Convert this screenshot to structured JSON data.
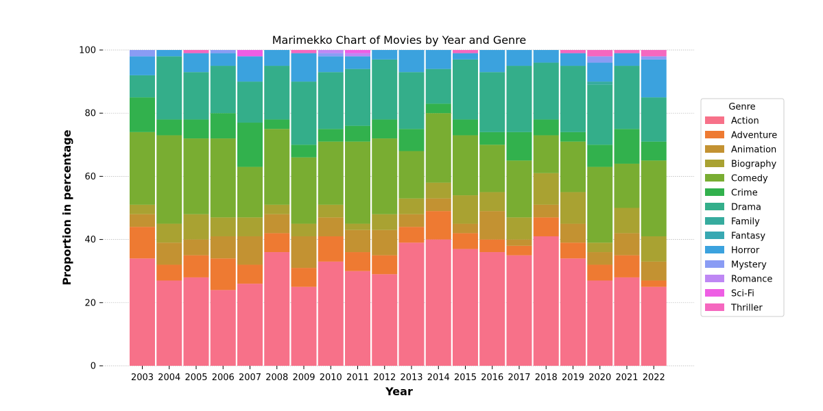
{
  "chart_data": {
    "type": "bar",
    "stacked": true,
    "title": "Marimekko Chart of Movies by Year and Genre",
    "xlabel": "Year",
    "ylabel": "Proportion in percentage",
    "ylim": [
      0,
      100
    ],
    "yticks": [
      "0",
      "20",
      "40",
      "60",
      "80",
      "100"
    ],
    "grid": "horizontal dotted",
    "legend": {
      "title": "Genre",
      "placement": "right"
    },
    "categories": [
      "2003",
      "2004",
      "2005",
      "2006",
      "2007",
      "2008",
      "2009",
      "2010",
      "2011",
      "2012",
      "2013",
      "2014",
      "2015",
      "2016",
      "2017",
      "2018",
      "2019",
      "2020",
      "2021",
      "2022"
    ],
    "series": [
      {
        "name": "Action",
        "color": "#f77189",
        "values": [
          34,
          27,
          28,
          24,
          26,
          36,
          25,
          33,
          30,
          29,
          39,
          40,
          37,
          36,
          35,
          41,
          34,
          27,
          28,
          25
        ]
      },
      {
        "name": "Adventure",
        "color": "#ee7a32",
        "values": [
          10,
          5,
          7,
          10,
          6,
          6,
          6,
          8,
          6,
          6,
          5,
          9,
          5,
          4,
          3,
          6,
          5,
          5,
          7,
          2
        ]
      },
      {
        "name": "Animation",
        "color": "#c39232",
        "values": [
          4,
          7,
          5,
          7,
          9,
          6,
          10,
          6,
          7,
          8,
          4,
          4,
          3,
          9,
          2,
          4,
          6,
          4,
          7,
          6
        ]
      },
      {
        "name": "Biography",
        "color": "#a9a232",
        "values": [
          3,
          6,
          8,
          6,
          6,
          3,
          4,
          4,
          2,
          5,
          5,
          5,
          9,
          6,
          7,
          10,
          10,
          3,
          8,
          8
        ]
      },
      {
        "name": "Comedy",
        "color": "#79ad32",
        "values": [
          23,
          28,
          24,
          25,
          16,
          24,
          21,
          20,
          26,
          24,
          15,
          22,
          19,
          15,
          18,
          12,
          16,
          24,
          14,
          24
        ]
      },
      {
        "name": "Crime",
        "color": "#32b14d",
        "values": [
          11,
          5,
          6,
          8,
          14,
          3,
          4,
          4,
          5,
          6,
          7,
          3,
          5,
          4,
          9,
          5,
          3,
          7,
          11,
          6
        ]
      },
      {
        "name": "Drama",
        "color": "#34ae8a",
        "values": [
          7,
          20,
          15,
          15,
          13,
          17,
          20,
          18,
          18,
          19,
          18,
          11,
          19,
          19,
          21,
          18,
          21,
          19,
          20,
          14
        ]
      },
      {
        "name": "Family",
        "color": "#36ab9e",
        "values": [
          0,
          0,
          0,
          0,
          0,
          0,
          0,
          0,
          0,
          0,
          0,
          0,
          0,
          0,
          0,
          0,
          0,
          1,
          0,
          0
        ]
      },
      {
        "name": "Fantasy",
        "color": "#38a8b2",
        "values": [
          0,
          0,
          0,
          0,
          0,
          0,
          0,
          0,
          0,
          0,
          0,
          0,
          0,
          0,
          0,
          0,
          0,
          0,
          0,
          0
        ]
      },
      {
        "name": "Horror",
        "color": "#3ba2de",
        "values": [
          6,
          2,
          6,
          4,
          8,
          5,
          9,
          5,
          4,
          3,
          7,
          6,
          2,
          7,
          5,
          4,
          4,
          6,
          4,
          12
        ]
      },
      {
        "name": "Mystery",
        "color": "#8a9cf4",
        "values": [
          2,
          0,
          0,
          1,
          0,
          0,
          0,
          1,
          0,
          0,
          0,
          0,
          0,
          0,
          0,
          0,
          0,
          2,
          0,
          1
        ]
      },
      {
        "name": "Romance",
        "color": "#be87f4",
        "values": [
          0,
          0,
          0,
          0,
          0,
          0,
          0,
          1,
          1,
          0,
          0,
          0,
          0,
          0,
          0,
          0,
          0,
          0,
          0,
          0
        ]
      },
      {
        "name": "Sci-Fi",
        "color": "#ee5ee4",
        "values": [
          0,
          0,
          0,
          0,
          2,
          0,
          0,
          0,
          1,
          0,
          0,
          0,
          0,
          0,
          0,
          0,
          0,
          0,
          0,
          0
        ]
      },
      {
        "name": "Thriller",
        "color": "#f567bf",
        "values": [
          0,
          0,
          1,
          0,
          0,
          0,
          1,
          0,
          0,
          0,
          0,
          0,
          1,
          0,
          0,
          0,
          1,
          2,
          1,
          2
        ]
      }
    ]
  }
}
